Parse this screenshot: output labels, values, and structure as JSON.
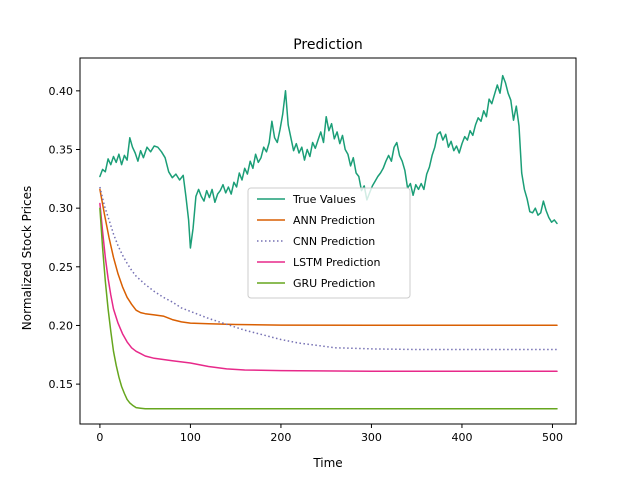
{
  "chart_data": {
    "type": "line",
    "title": "Prediction",
    "xlabel": "Time",
    "ylabel": "Normalized Stock Prices",
    "xlim": [
      -22,
      526
    ],
    "ylim": [
      0.116,
      0.428
    ],
    "xticks": [
      0,
      100,
      200,
      300,
      400,
      500
    ],
    "yticks": [
      0.15,
      0.2,
      0.25,
      0.3,
      0.35,
      0.4
    ],
    "ytick_labels": [
      "0.15",
      "0.20",
      "0.25",
      "0.30",
      "0.35",
      "0.40"
    ],
    "grid": false,
    "legend_position": "center",
    "series": [
      {
        "name": "True Values",
        "color": "#1b9e77",
        "style": "solid",
        "points": [
          [
            0,
            0.327
          ],
          [
            3,
            0.333
          ],
          [
            6,
            0.331
          ],
          [
            9,
            0.342
          ],
          [
            12,
            0.337
          ],
          [
            15,
            0.344
          ],
          [
            18,
            0.339
          ],
          [
            21,
            0.346
          ],
          [
            24,
            0.337
          ],
          [
            27,
            0.345
          ],
          [
            30,
            0.341
          ],
          [
            33,
            0.36
          ],
          [
            36,
            0.352
          ],
          [
            39,
            0.347
          ],
          [
            42,
            0.34
          ],
          [
            45,
            0.349
          ],
          [
            48,
            0.343
          ],
          [
            52,
            0.352
          ],
          [
            56,
            0.348
          ],
          [
            60,
            0.353
          ],
          [
            64,
            0.352
          ],
          [
            68,
            0.348
          ],
          [
            72,
            0.343
          ],
          [
            76,
            0.331
          ],
          [
            80,
            0.326
          ],
          [
            84,
            0.329
          ],
          [
            88,
            0.324
          ],
          [
            92,
            0.328
          ],
          [
            95,
            0.31
          ],
          [
            98,
            0.29
          ],
          [
            100,
            0.266
          ],
          [
            103,
            0.283
          ],
          [
            106,
            0.31
          ],
          [
            109,
            0.316
          ],
          [
            112,
            0.31
          ],
          [
            115,
            0.306
          ],
          [
            118,
            0.315
          ],
          [
            121,
            0.309
          ],
          [
            124,
            0.316
          ],
          [
            127,
            0.305
          ],
          [
            130,
            0.312
          ],
          [
            133,
            0.315
          ],
          [
            136,
            0.32
          ],
          [
            139,
            0.313
          ],
          [
            142,
            0.318
          ],
          [
            145,
            0.312
          ],
          [
            148,
            0.322
          ],
          [
            151,
            0.318
          ],
          [
            154,
            0.33
          ],
          [
            157,
            0.324
          ],
          [
            160,
            0.334
          ],
          [
            163,
            0.329
          ],
          [
            166,
            0.34
          ],
          [
            169,
            0.334
          ],
          [
            172,
            0.346
          ],
          [
            175,
            0.339
          ],
          [
            178,
            0.343
          ],
          [
            181,
            0.352
          ],
          [
            184,
            0.348
          ],
          [
            187,
            0.356
          ],
          [
            190,
            0.374
          ],
          [
            193,
            0.36
          ],
          [
            196,
            0.356
          ],
          [
            199,
            0.367
          ],
          [
            202,
            0.38
          ],
          [
            205,
            0.4
          ],
          [
            208,
            0.371
          ],
          [
            211,
            0.36
          ],
          [
            214,
            0.349
          ],
          [
            217,
            0.355
          ],
          [
            220,
            0.347
          ],
          [
            223,
            0.352
          ],
          [
            226,
            0.341
          ],
          [
            229,
            0.35
          ],
          [
            232,
            0.344
          ],
          [
            235,
            0.356
          ],
          [
            238,
            0.351
          ],
          [
            241,
            0.358
          ],
          [
            244,
            0.365
          ],
          [
            247,
            0.356
          ],
          [
            250,
            0.378
          ],
          [
            253,
            0.366
          ],
          [
            256,
            0.372
          ],
          [
            259,
            0.359
          ],
          [
            262,
            0.365
          ],
          [
            265,
            0.355
          ],
          [
            268,
            0.362
          ],
          [
            271,
            0.35
          ],
          [
            274,
            0.346
          ],
          [
            277,
            0.336
          ],
          [
            280,
            0.343
          ],
          [
            283,
            0.33
          ],
          [
            286,
            0.327
          ],
          [
            289,
            0.315
          ],
          [
            292,
            0.319
          ],
          [
            295,
            0.307
          ],
          [
            298,
            0.313
          ],
          [
            301,
            0.319
          ],
          [
            304,
            0.323
          ],
          [
            307,
            0.327
          ],
          [
            310,
            0.33
          ],
          [
            313,
            0.334
          ],
          [
            316,
            0.34
          ],
          [
            319,
            0.345
          ],
          [
            322,
            0.34
          ],
          [
            325,
            0.352
          ],
          [
            328,
            0.356
          ],
          [
            331,
            0.345
          ],
          [
            334,
            0.34
          ],
          [
            337,
            0.332
          ],
          [
            340,
            0.317
          ],
          [
            343,
            0.321
          ],
          [
            346,
            0.311
          ],
          [
            349,
            0.32
          ],
          [
            352,
            0.316
          ],
          [
            355,
            0.321
          ],
          [
            358,
            0.316
          ],
          [
            361,
            0.329
          ],
          [
            364,
            0.335
          ],
          [
            367,
            0.345
          ],
          [
            370,
            0.352
          ],
          [
            373,
            0.363
          ],
          [
            376,
            0.365
          ],
          [
            379,
            0.358
          ],
          [
            382,
            0.363
          ],
          [
            385,
            0.352
          ],
          [
            388,
            0.357
          ],
          [
            391,
            0.349
          ],
          [
            394,
            0.353
          ],
          [
            397,
            0.347
          ],
          [
            400,
            0.355
          ],
          [
            403,
            0.361
          ],
          [
            406,
            0.358
          ],
          [
            409,
            0.366
          ],
          [
            412,
            0.362
          ],
          [
            415,
            0.371
          ],
          [
            418,
            0.377
          ],
          [
            421,
            0.374
          ],
          [
            424,
            0.383
          ],
          [
            427,
            0.378
          ],
          [
            430,
            0.393
          ],
          [
            433,
            0.389
          ],
          [
            436,
            0.397
          ],
          [
            439,
            0.405
          ],
          [
            442,
            0.398
          ],
          [
            445,
            0.413
          ],
          [
            448,
            0.407
          ],
          [
            451,
            0.398
          ],
          [
            454,
            0.392
          ],
          [
            457,
            0.375
          ],
          [
            460,
            0.387
          ],
          [
            463,
            0.37
          ],
          [
            466,
            0.33
          ],
          [
            469,
            0.316
          ],
          [
            472,
            0.308
          ],
          [
            475,
            0.297
          ],
          [
            478,
            0.296
          ],
          [
            481,
            0.3
          ],
          [
            484,
            0.294
          ],
          [
            487,
            0.296
          ],
          [
            490,
            0.306
          ],
          [
            493,
            0.298
          ],
          [
            496,
            0.292
          ],
          [
            499,
            0.288
          ],
          [
            502,
            0.29
          ],
          [
            505,
            0.287
          ]
        ]
      },
      {
        "name": "ANN Prediction",
        "color": "#d95f02",
        "style": "solid",
        "points": [
          [
            0,
            0.316
          ],
          [
            5,
            0.295
          ],
          [
            10,
            0.275
          ],
          [
            15,
            0.258
          ],
          [
            20,
            0.244
          ],
          [
            25,
            0.233
          ],
          [
            30,
            0.224
          ],
          [
            35,
            0.218
          ],
          [
            40,
            0.213
          ],
          [
            45,
            0.211
          ],
          [
            50,
            0.21
          ],
          [
            60,
            0.209
          ],
          [
            70,
            0.208
          ],
          [
            80,
            0.205
          ],
          [
            90,
            0.203
          ],
          [
            100,
            0.202
          ],
          [
            120,
            0.2015
          ],
          [
            150,
            0.2008
          ],
          [
            200,
            0.2003
          ],
          [
            300,
            0.2001
          ],
          [
            400,
            0.2001
          ],
          [
            505,
            0.2001
          ]
        ]
      },
      {
        "name": "CNN Prediction",
        "color": "#7570b3",
        "style": "dotted",
        "points": [
          [
            0,
            0.318
          ],
          [
            5,
            0.302
          ],
          [
            10,
            0.29
          ],
          [
            15,
            0.278
          ],
          [
            20,
            0.268
          ],
          [
            25,
            0.26
          ],
          [
            30,
            0.253
          ],
          [
            35,
            0.247
          ],
          [
            40,
            0.242
          ],
          [
            50,
            0.235
          ],
          [
            60,
            0.229
          ],
          [
            70,
            0.224
          ],
          [
            80,
            0.22
          ],
          [
            90,
            0.215
          ],
          [
            100,
            0.212
          ],
          [
            120,
            0.206
          ],
          [
            140,
            0.201
          ],
          [
            160,
            0.196
          ],
          [
            180,
            0.192
          ],
          [
            200,
            0.188
          ],
          [
            220,
            0.185
          ],
          [
            240,
            0.183
          ],
          [
            260,
            0.181
          ],
          [
            280,
            0.1805
          ],
          [
            300,
            0.18
          ],
          [
            350,
            0.1795
          ],
          [
            400,
            0.1795
          ],
          [
            450,
            0.1795
          ],
          [
            505,
            0.1795
          ]
        ]
      },
      {
        "name": "LSTM Prediction",
        "color": "#e7298a",
        "style": "solid",
        "points": [
          [
            0,
            0.304
          ],
          [
            3,
            0.28
          ],
          [
            6,
            0.258
          ],
          [
            9,
            0.24
          ],
          [
            12,
            0.226
          ],
          [
            15,
            0.214
          ],
          [
            20,
            0.202
          ],
          [
            25,
            0.193
          ],
          [
            30,
            0.186
          ],
          [
            35,
            0.181
          ],
          [
            40,
            0.178
          ],
          [
            45,
            0.176
          ],
          [
            50,
            0.174
          ],
          [
            60,
            0.172
          ],
          [
            70,
            0.171
          ],
          [
            80,
            0.17
          ],
          [
            100,
            0.168
          ],
          [
            120,
            0.165
          ],
          [
            140,
            0.163
          ],
          [
            160,
            0.162
          ],
          [
            200,
            0.1615
          ],
          [
            300,
            0.161
          ],
          [
            400,
            0.161
          ],
          [
            505,
            0.161
          ]
        ]
      },
      {
        "name": "GRU Prediction",
        "color": "#66a61e",
        "style": "solid",
        "points": [
          [
            0,
            0.3
          ],
          [
            3,
            0.266
          ],
          [
            6,
            0.238
          ],
          [
            9,
            0.214
          ],
          [
            12,
            0.195
          ],
          [
            15,
            0.178
          ],
          [
            18,
            0.166
          ],
          [
            21,
            0.156
          ],
          [
            24,
            0.148
          ],
          [
            27,
            0.142
          ],
          [
            30,
            0.137
          ],
          [
            33,
            0.134
          ],
          [
            36,
            0.132
          ],
          [
            40,
            0.13
          ],
          [
            45,
            0.1295
          ],
          [
            50,
            0.129
          ],
          [
            100,
            0.129
          ],
          [
            200,
            0.129
          ],
          [
            300,
            0.129
          ],
          [
            400,
            0.129
          ],
          [
            505,
            0.129
          ]
        ]
      }
    ]
  }
}
